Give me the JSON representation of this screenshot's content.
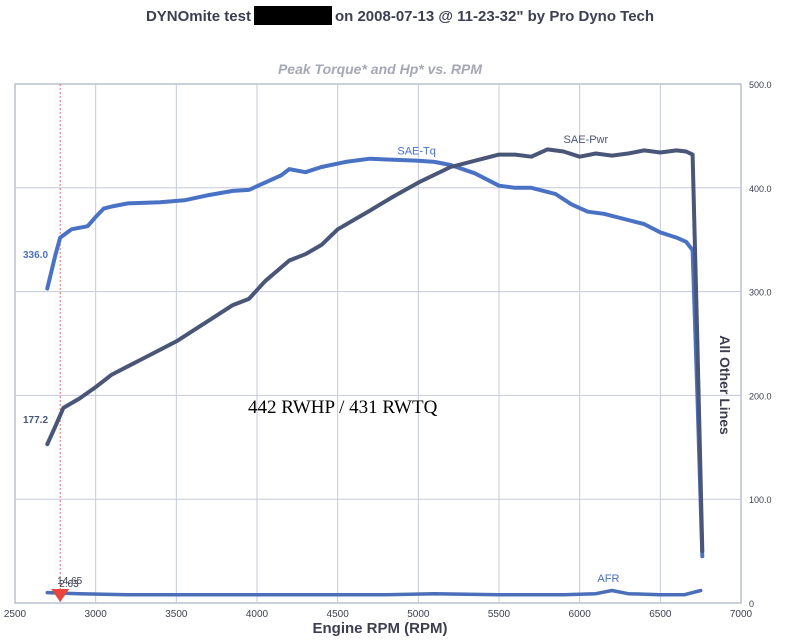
{
  "header": {
    "title_prefix": "DYNOmite test",
    "title_suffix": "on 2008-07-13 @ 11-23-32\" by Pro Dyno Tech"
  },
  "annotation": "442 RWHP / 431 RWTQ",
  "colors": {
    "torque": "#4a72c4",
    "power": "#4a5678",
    "afr": "#4a6fb8",
    "grid": "#c5c9dc",
    "marker": "#e8453d",
    "text": "#3c3f50"
  },
  "chart_data": {
    "type": "line",
    "title": "Peak Torque* and Hp* vs. RPM",
    "xlabel": "Engine RPM (RPM)",
    "ylabel": "All Other Lines",
    "xlim": [
      2500,
      7000
    ],
    "ylim": [
      0,
      500
    ],
    "x_ticks": [
      "2500",
      "3000",
      "3500",
      "4000",
      "4500",
      "5000",
      "5500",
      "6000",
      "6500",
      "7000"
    ],
    "y_ticks": [
      "0",
      "100.0",
      "200.0",
      "300.0",
      "400.0",
      "500.0"
    ],
    "grid": true,
    "series": [
      {
        "name": "SAE-Tq",
        "color_key": "torque",
        "points": [
          [
            2700,
            303
          ],
          [
            2750,
            335
          ],
          [
            2780,
            352
          ],
          [
            2850,
            360
          ],
          [
            2950,
            363
          ],
          [
            3000,
            372
          ],
          [
            3050,
            380
          ],
          [
            3100,
            382
          ],
          [
            3200,
            385
          ],
          [
            3400,
            386
          ],
          [
            3550,
            388
          ],
          [
            3700,
            393
          ],
          [
            3850,
            397
          ],
          [
            3950,
            398
          ],
          [
            4050,
            405
          ],
          [
            4150,
            412
          ],
          [
            4200,
            418
          ],
          [
            4300,
            415
          ],
          [
            4400,
            420
          ],
          [
            4550,
            425
          ],
          [
            4700,
            428
          ],
          [
            4850,
            427
          ],
          [
            5000,
            426
          ],
          [
            5100,
            425
          ],
          [
            5200,
            422
          ],
          [
            5350,
            414
          ],
          [
            5500,
            402
          ],
          [
            5600,
            400
          ],
          [
            5700,
            400
          ],
          [
            5850,
            394
          ],
          [
            5950,
            384
          ],
          [
            6050,
            377
          ],
          [
            6150,
            375
          ],
          [
            6300,
            369
          ],
          [
            6400,
            365
          ],
          [
            6500,
            357
          ],
          [
            6600,
            352
          ],
          [
            6660,
            348
          ],
          [
            6700,
            340
          ],
          [
            6730,
            200
          ],
          [
            6760,
            45
          ]
        ],
        "label_value": "336.0"
      },
      {
        "name": "SAE-Pwr",
        "color_key": "power",
        "points": [
          [
            2700,
            153
          ],
          [
            2750,
            170
          ],
          [
            2800,
            188
          ],
          [
            2900,
            197
          ],
          [
            3000,
            208
          ],
          [
            3100,
            220
          ],
          [
            3200,
            228
          ],
          [
            3300,
            236
          ],
          [
            3500,
            252
          ],
          [
            3700,
            272
          ],
          [
            3850,
            287
          ],
          [
            3950,
            293
          ],
          [
            4050,
            310
          ],
          [
            4200,
            330
          ],
          [
            4300,
            336
          ],
          [
            4400,
            345
          ],
          [
            4500,
            360
          ],
          [
            4700,
            378
          ],
          [
            4850,
            392
          ],
          [
            5000,
            405
          ],
          [
            5200,
            420
          ],
          [
            5400,
            428
          ],
          [
            5500,
            432
          ],
          [
            5600,
            432
          ],
          [
            5700,
            430
          ],
          [
            5800,
            437
          ],
          [
            5900,
            435
          ],
          [
            6000,
            430
          ],
          [
            6100,
            433
          ],
          [
            6200,
            431
          ],
          [
            6300,
            433
          ],
          [
            6400,
            436
          ],
          [
            6500,
            434
          ],
          [
            6600,
            436
          ],
          [
            6660,
            435
          ],
          [
            6700,
            432
          ],
          [
            6730,
            250
          ],
          [
            6760,
            50
          ]
        ],
        "label_value": "177.2"
      },
      {
        "name": "AFR",
        "color_key": "afr",
        "points": [
          [
            2700,
            10
          ],
          [
            2900,
            9
          ],
          [
            3200,
            8
          ],
          [
            3600,
            8
          ],
          [
            4000,
            8
          ],
          [
            4400,
            8
          ],
          [
            4800,
            8
          ],
          [
            5100,
            9
          ],
          [
            5500,
            8
          ],
          [
            5900,
            8
          ],
          [
            6100,
            9
          ],
          [
            6200,
            12
          ],
          [
            6300,
            9
          ],
          [
            6500,
            8
          ],
          [
            6650,
            8
          ],
          [
            6750,
            12
          ]
        ]
      }
    ],
    "marker_rpm": 2780,
    "afr_labels": [
      "2.63",
      "14.65"
    ]
  }
}
